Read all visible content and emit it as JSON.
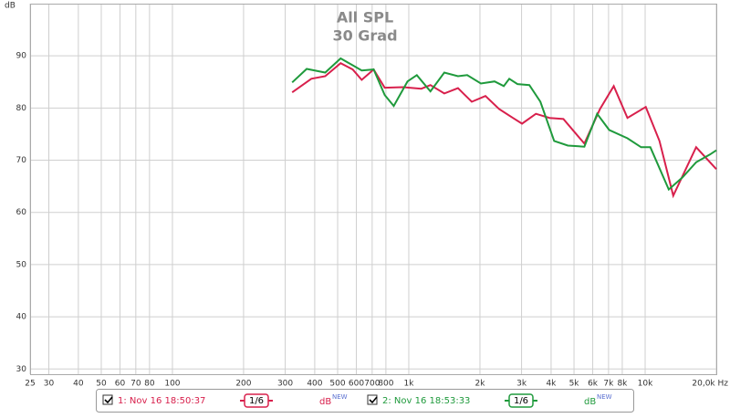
{
  "chart_data": {
    "type": "line",
    "title": "All SPL",
    "subtitle": "30 Grad",
    "y_label": "dB",
    "xlim": [
      25,
      20000
    ],
    "ylim": [
      29,
      100
    ],
    "x_log": true,
    "grid": true,
    "xticks": [
      25,
      30,
      40,
      50,
      60,
      70,
      80,
      100,
      200,
      300,
      400,
      500,
      600,
      700,
      800,
      {
        "value": 1000,
        "label": "1k"
      },
      {
        "value": 2000,
        "label": "2k"
      },
      {
        "value": 3000,
        "label": "3k"
      },
      {
        "value": 4000,
        "label": "4k"
      },
      {
        "value": 5000,
        "label": "5k"
      },
      {
        "value": 6000,
        "label": "6k"
      },
      {
        "value": 7000,
        "label": "7k"
      },
      {
        "value": 8000,
        "label": "8k"
      },
      {
        "value": 10000,
        "label": "10k"
      },
      {
        "value": 20000,
        "label": "20,0k Hz"
      }
    ],
    "yticks": [
      30,
      40,
      50,
      60,
      70,
      80,
      90
    ],
    "series": [
      {
        "name": "1: Nov 16 18:50:37",
        "color": "#d8204c",
        "smoothing": "1/6",
        "unit": "dB",
        "badge": "NEW",
        "checked": true,
        "x": [
          321,
          387,
          443,
          515,
          579,
          632,
          710,
          791,
          946,
          1130,
          1235,
          1413,
          1615,
          1846,
          2110,
          2411,
          2757,
          3015,
          3450,
          3943,
          4508,
          5530,
          6440,
          7363,
          8415,
          10060,
          11500,
          13150,
          16440,
          20000
        ],
        "values": [
          83.0,
          85.6,
          86.1,
          88.6,
          87.4,
          85.4,
          87.4,
          83.9,
          84.0,
          83.7,
          84.4,
          82.8,
          83.8,
          81.2,
          82.3,
          79.8,
          78.1,
          77.0,
          78.9,
          78.1,
          77.9,
          73.2,
          79.8,
          84.2,
          78.1,
          80.2,
          73.7,
          63.2,
          72.5,
          68.3
        ]
      },
      {
        "name": "2: Nov 16 18:53:33",
        "color": "#1f9a3c",
        "smoothing": "1/6",
        "unit": "dB",
        "badge": "NEW",
        "checked": true,
        "x": [
          321,
          370,
          443,
          515,
          579,
          632,
          710,
          791,
          864,
          988,
          1081,
          1235,
          1413,
          1615,
          1766,
          2018,
          2307,
          2522,
          2661,
          2883,
          3237,
          3605,
          4120,
          4710,
          5530,
          6265,
          7045,
          8415,
          9615,
          10520,
          12590,
          14380,
          16440,
          18790,
          20000
        ],
        "values": [
          84.9,
          87.5,
          86.8,
          89.5,
          88.2,
          87.2,
          87.4,
          82.5,
          80.4,
          85.1,
          86.3,
          83.2,
          86.8,
          86.1,
          86.3,
          84.7,
          85.1,
          84.2,
          85.6,
          84.6,
          84.4,
          81.2,
          73.7,
          72.8,
          72.6,
          78.9,
          75.8,
          74.2,
          72.5,
          72.5,
          64.4,
          66.7,
          69.6,
          71.1,
          71.9
        ]
      }
    ]
  }
}
